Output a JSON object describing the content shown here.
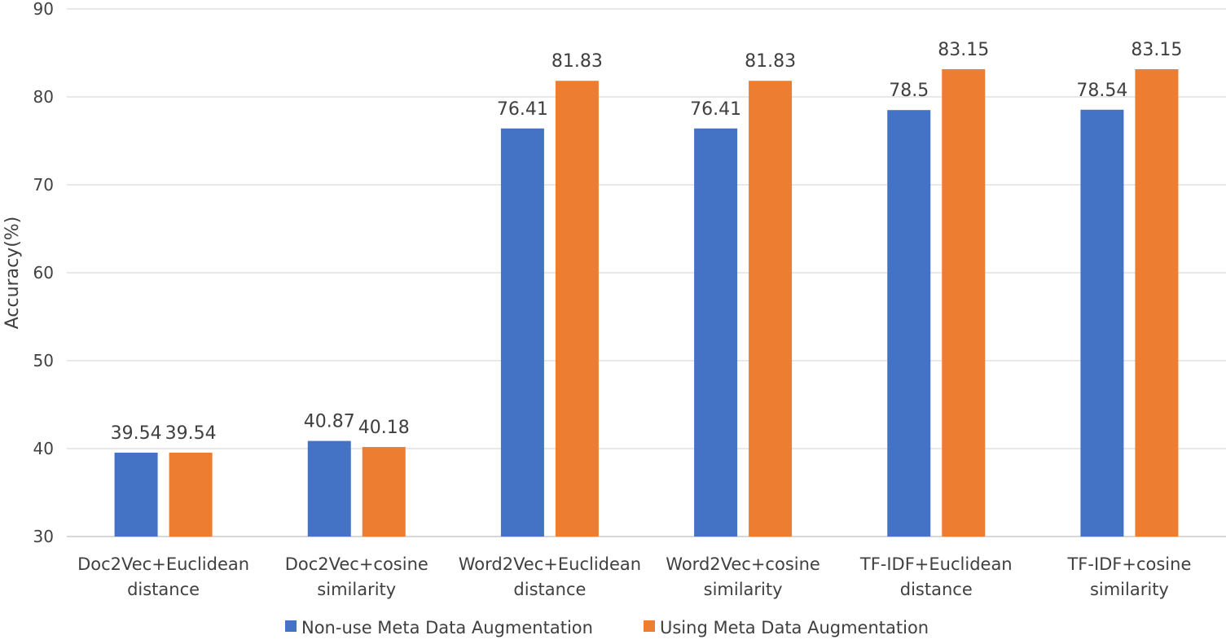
{
  "chart_data": {
    "type": "bar",
    "title": "",
    "xlabel": "",
    "ylabel": "Accuracy(%)",
    "ylim": [
      30,
      90
    ],
    "yticks": [
      30,
      40,
      50,
      60,
      70,
      80,
      90
    ],
    "grid": true,
    "legend_position": "bottom",
    "categories": [
      [
        "Doc2Vec+Euclidean",
        "distance"
      ],
      [
        "Doc2Vec+cosine",
        "similarity"
      ],
      [
        "Word2Vec+Euclidean",
        "distance"
      ],
      [
        "Word2Vec+cosine",
        "similarity"
      ],
      [
        "TF-IDF+Euclidean",
        "distance"
      ],
      [
        "TF-IDF+cosine",
        "similarity"
      ]
    ],
    "series": [
      {
        "name": "Non-use Meta Data Augmentation",
        "color": "#4472C4",
        "values": [
          39.54,
          40.87,
          76.41,
          76.41,
          78.5,
          78.54
        ]
      },
      {
        "name": "Using Meta Data Augmentation",
        "color": "#ED7D31",
        "values": [
          39.54,
          40.18,
          81.83,
          81.83,
          83.15,
          83.15
        ]
      }
    ]
  }
}
